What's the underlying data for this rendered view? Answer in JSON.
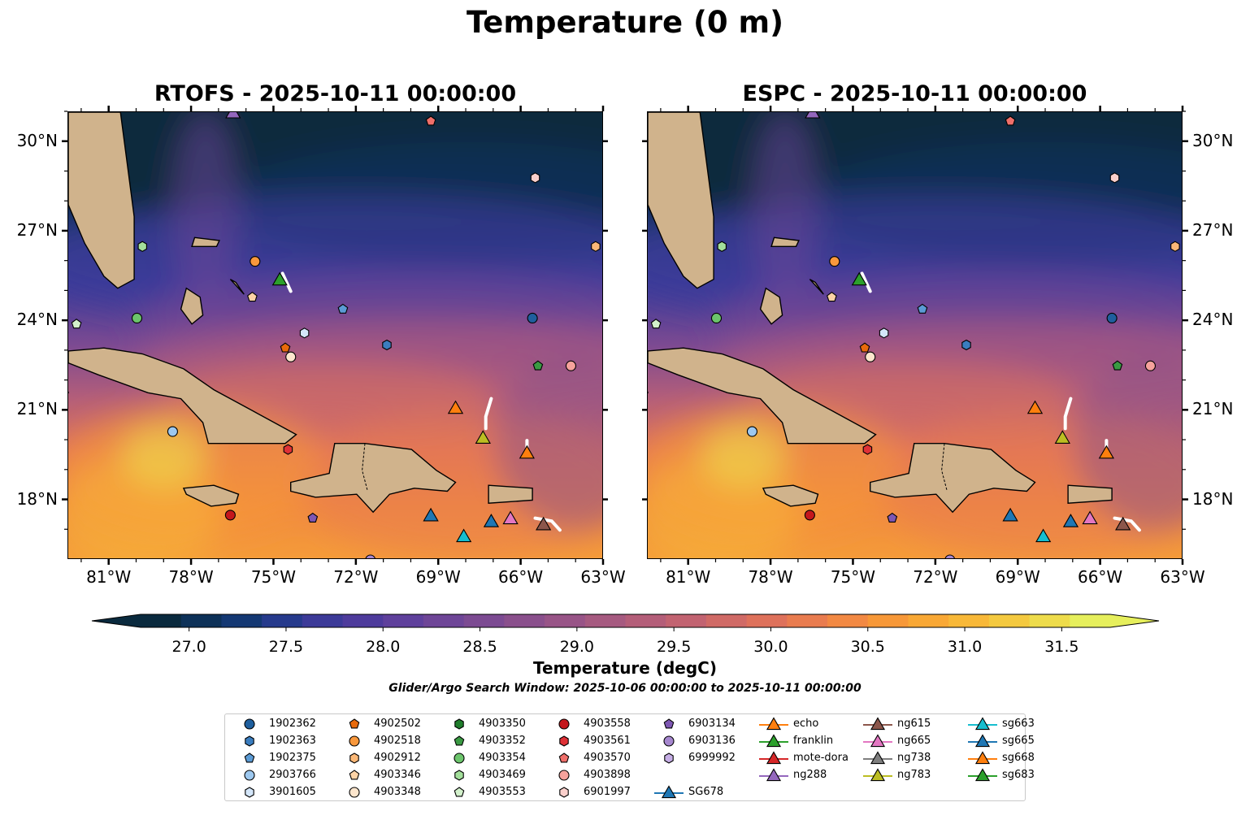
{
  "title": "Temperature (0 m)",
  "panels": [
    {
      "title": "RTOFS - 2025-10-11 00:00:00"
    },
    {
      "title": "ESPC - 2025-10-11 00:00:00"
    }
  ],
  "axes": {
    "lon_labels": [
      "81°W",
      "78°W",
      "75°W",
      "72°W",
      "69°W",
      "66°W",
      "63°W"
    ],
    "lat_labels": [
      "30°N",
      "27°N",
      "24°N",
      "21°N",
      "18°N"
    ],
    "lon_values": [
      -81,
      -78,
      -75,
      -72,
      -69,
      -66,
      -63
    ],
    "lat_values": [
      30,
      27,
      24,
      21,
      18
    ],
    "lon_range": [
      -82.5,
      -63
    ],
    "lat_range": [
      16,
      31
    ]
  },
  "colorbar": {
    "label": "Temperature (degC)",
    "ticks": [
      "27.0",
      "27.5",
      "28.0",
      "28.5",
      "29.0",
      "29.5",
      "30.0",
      "30.5",
      "31.0",
      "31.5"
    ],
    "colors": [
      "#0a2a3e",
      "#0d3158",
      "#143873",
      "#263a8c",
      "#3c3a98",
      "#4e3b9c",
      "#5f409c",
      "#6e4597",
      "#7c4a92",
      "#8a4f8c",
      "#985487",
      "#a65a80",
      "#b45e79",
      "#c26371",
      "#d06a66",
      "#de715b",
      "#e97c4f",
      "#f28943",
      "#f79838",
      "#f9a835",
      "#f8b838",
      "#f4c93f",
      "#eedc4b",
      "#e6ef5c"
    ],
    "land_color": "#d0b38c",
    "range": [
      26.75,
      31.75
    ]
  },
  "search_window": "Glider/Argo Search Window: 2025-10-06 00:00:00 to 2025-10-11 00:00:00",
  "legend": [
    {
      "label": "1902362",
      "marker": "circle",
      "color": "#1f5f9e"
    },
    {
      "label": "1902363",
      "marker": "hexagon",
      "color": "#3a7dbf"
    },
    {
      "label": "1902375",
      "marker": "pentagon",
      "color": "#5b9bd5"
    },
    {
      "label": "2903766",
      "marker": "circle",
      "color": "#9dc8ef"
    },
    {
      "label": "3901605",
      "marker": "hexagon",
      "color": "#d4e6f9"
    },
    {
      "label": "4902502",
      "marker": "pentagon",
      "color": "#e86a0c"
    },
    {
      "label": "4902518",
      "marker": "circle",
      "color": "#f9983c"
    },
    {
      "label": "4902912",
      "marker": "hexagon",
      "color": "#fbb877"
    },
    {
      "label": "4903346",
      "marker": "pentagon",
      "color": "#fdd3a6"
    },
    {
      "label": "4903348",
      "marker": "circle",
      "color": "#fde6cd"
    },
    {
      "label": "4903350",
      "marker": "hexagon",
      "color": "#1f7d2b"
    },
    {
      "label": "4903352",
      "marker": "pentagon",
      "color": "#3a9a43"
    },
    {
      "label": "4903354",
      "marker": "circle",
      "color": "#6cc56c"
    },
    {
      "label": "4903469",
      "marker": "hexagon",
      "color": "#a3df9b"
    },
    {
      "label": "4903553",
      "marker": "pentagon",
      "color": "#d3f1cc"
    },
    {
      "label": "4903558",
      "marker": "circle",
      "color": "#c4161c"
    },
    {
      "label": "4903561",
      "marker": "hexagon",
      "color": "#df3136"
    },
    {
      "label": "4903570",
      "marker": "pentagon",
      "color": "#ef6f6a"
    },
    {
      "label": "4903898",
      "marker": "circle",
      "color": "#f6a29c"
    },
    {
      "label": "6901997",
      "marker": "hexagon",
      "color": "#fbd0cc"
    },
    {
      "label": "6903134",
      "marker": "pentagon",
      "color": "#7e57b3"
    },
    {
      "label": "6903136",
      "marker": "circle",
      "color": "#a687cf"
    },
    {
      "label": "6999992",
      "marker": "hexagon",
      "color": "#c6aee6"
    },
    {
      "label": "SG678",
      "marker": "triangle",
      "color": "#1f77b4"
    },
    {
      "label": "echo",
      "marker": "triangle",
      "color": "#ff7f0e"
    },
    {
      "label": "franklin",
      "marker": "triangle",
      "color": "#2ca02c"
    },
    {
      "label": "mote-dora",
      "marker": "triangle",
      "color": "#d62728"
    },
    {
      "label": "ng288",
      "marker": "triangle",
      "color": "#9467bd"
    },
    {
      "label": "ng615",
      "marker": "triangle",
      "color": "#8c564b"
    },
    {
      "label": "ng665",
      "marker": "triangle",
      "color": "#e377c2"
    },
    {
      "label": "ng738",
      "marker": "triangle",
      "color": "#7f7f7f"
    },
    {
      "label": "ng783",
      "marker": "triangle",
      "color": "#bcbd22"
    },
    {
      "label": "sg663",
      "marker": "triangle",
      "color": "#17becf"
    },
    {
      "label": "sg665",
      "marker": "triangle",
      "color": "#1f77b4"
    },
    {
      "label": "sg668",
      "marker": "triangle",
      "color": "#ff7f0e"
    },
    {
      "label": "sg683",
      "marker": "triangle",
      "color": "#2ca02c"
    }
  ],
  "map_markers": [
    {
      "label": "1902362",
      "marker": "circle",
      "color": "#1f5f9e",
      "lon": -65.6,
      "lat": 24.1
    },
    {
      "label": "1902363",
      "marker": "hexagon",
      "color": "#3a7dbf",
      "lon": -70.9,
      "lat": 23.2
    },
    {
      "label": "1902375",
      "marker": "pentagon",
      "color": "#5b9bd5",
      "lon": -72.5,
      "lat": 24.4
    },
    {
      "label": "2903766",
      "marker": "circle",
      "color": "#9dc8ef",
      "lon": -78.7,
      "lat": 20.3
    },
    {
      "label": "3901605",
      "marker": "hexagon",
      "color": "#d4e6f9",
      "lon": -73.9,
      "lat": 23.6
    },
    {
      "label": "4902502",
      "marker": "pentagon",
      "color": "#e86a0c",
      "lon": -74.6,
      "lat": 23.1
    },
    {
      "label": "4902518",
      "marker": "circle",
      "color": "#f9983c",
      "lon": -75.7,
      "lat": 26.0
    },
    {
      "label": "4902912",
      "marker": "hexagon",
      "color": "#fbb877",
      "lon": -63.3,
      "lat": 26.5
    },
    {
      "label": "4903346",
      "marker": "pentagon",
      "color": "#fdd3a6",
      "lon": -75.8,
      "lat": 24.8
    },
    {
      "label": "4903348",
      "marker": "circle",
      "color": "#fde6cd",
      "lon": -74.4,
      "lat": 22.8
    },
    {
      "label": "4903350",
      "marker": "hexagon",
      "color": "#1f7d2b",
      "lon": -79.8,
      "lat": 26.5
    },
    {
      "label": "4903352",
      "marker": "pentagon",
      "color": "#3a9a43",
      "lon": -65.4,
      "lat": 22.5
    },
    {
      "label": "4903354",
      "marker": "circle",
      "color": "#6cc56c",
      "lon": -80.0,
      "lat": 24.1
    },
    {
      "label": "4903469",
      "marker": "hexagon",
      "color": "#a3df9b",
      "lon": -79.8,
      "lat": 26.5
    },
    {
      "label": "4903553",
      "marker": "pentagon",
      "color": "#d3f1cc",
      "lon": -82.2,
      "lat": 23.9
    },
    {
      "label": "4903558",
      "marker": "circle",
      "color": "#c4161c",
      "lon": -76.6,
      "lat": 17.5
    },
    {
      "label": "4903561",
      "marker": "hexagon",
      "color": "#df3136",
      "lon": -74.5,
      "lat": 19.7
    },
    {
      "label": "4903570",
      "marker": "pentagon",
      "color": "#ef6f6a",
      "lon": -69.3,
      "lat": 30.7
    },
    {
      "label": "4903898",
      "marker": "circle",
      "color": "#f6a29c",
      "lon": -64.2,
      "lat": 22.5
    },
    {
      "label": "6901997",
      "marker": "hexagon",
      "color": "#fbd0cc",
      "lon": -65.5,
      "lat": 28.8
    },
    {
      "label": "6903134",
      "marker": "pentagon",
      "color": "#7e57b3",
      "lon": -73.6,
      "lat": 17.4
    },
    {
      "label": "6903136",
      "marker": "circle",
      "color": "#a687cf",
      "lon": -71.5,
      "lat": 16.0
    },
    {
      "label": "SG678",
      "marker": "triangle",
      "color": "#1f77b4",
      "lon": -67.1,
      "lat": 17.3
    },
    {
      "label": "echo",
      "marker": "triangle",
      "color": "#ff7f0e",
      "lon": -68.4,
      "lat": 21.1
    },
    {
      "label": "franklin",
      "marker": "triangle",
      "color": "#2ca02c",
      "lon": -74.8,
      "lat": 25.4
    },
    {
      "label": "ng288",
      "marker": "triangle",
      "color": "#9467bd",
      "lon": -76.5,
      "lat": 31.0
    },
    {
      "label": "ng615",
      "marker": "triangle",
      "color": "#8c564b",
      "lon": -65.2,
      "lat": 17.2
    },
    {
      "label": "ng665",
      "marker": "triangle",
      "color": "#e377c2",
      "lon": -66.4,
      "lat": 17.4
    },
    {
      "label": "ng783",
      "marker": "triangle",
      "color": "#bcbd22",
      "lon": -67.4,
      "lat": 20.1
    },
    {
      "label": "sg663",
      "marker": "triangle",
      "color": "#17becf",
      "lon": -68.1,
      "lat": 16.8
    },
    {
      "label": "sg665",
      "marker": "triangle",
      "color": "#1f77b4",
      "lon": -69.3,
      "lat": 17.5
    },
    {
      "label": "sg668",
      "marker": "triangle",
      "color": "#ff7f0e",
      "lon": -65.8,
      "lat": 19.6
    }
  ]
}
